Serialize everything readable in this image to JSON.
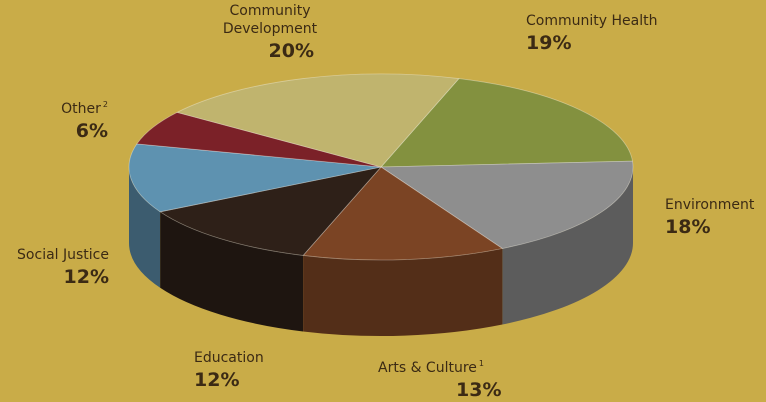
{
  "chart_data": {
    "type": "pie",
    "style": "3d",
    "slices": [
      {
        "label": "Community Health",
        "value": 19,
        "value_label": "19%",
        "footnote": "",
        "color": "#83913f"
      },
      {
        "label": "Environment",
        "value": 18,
        "value_label": "18%",
        "footnote": "",
        "color": "#8e8e8e"
      },
      {
        "label": "Arts & Culture",
        "value": 13,
        "value_label": "13%",
        "footnote": "1",
        "color": "#7b4424"
      },
      {
        "label": "Education",
        "value": 12,
        "value_label": "12%",
        "footnote": "",
        "color": "#2e2018"
      },
      {
        "label": "Social Justice",
        "value": 12,
        "value_label": "12%",
        "footnote": "",
        "color": "#5e92b0"
      },
      {
        "label": "Other",
        "value": 6,
        "value_label": "6%",
        "footnote": "2",
        "color": "#7b2128"
      },
      {
        "label": "Community Development",
        "value": 20,
        "value_label": "20%",
        "footnote": "",
        "color": "#c0b46e"
      }
    ],
    "community_development_lines": [
      "Community",
      "Development"
    ]
  },
  "colors": {
    "background": "#c9ac48",
    "label_text": "#3b2a14"
  }
}
